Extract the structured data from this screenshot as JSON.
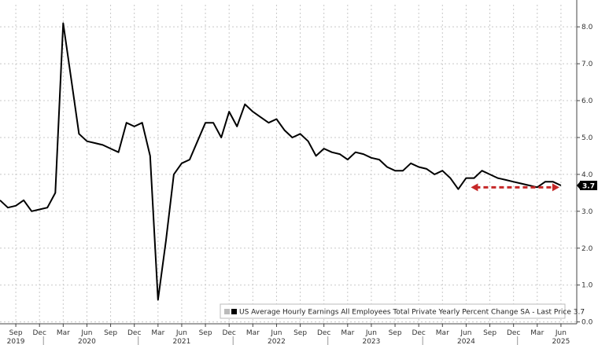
{
  "chart_data": {
    "type": "line",
    "series": [
      {
        "name": "US Average Hourly Earnings All Employees Total Private Yearly Percent Change SA - Last Price 3.7",
        "color": "#000000",
        "x": [
          "2019-07",
          "2019-08",
          "2019-09",
          "2019-10",
          "2019-11",
          "2019-12",
          "2020-01",
          "2020-02",
          "2020-03",
          "2020-04",
          "2020-05",
          "2020-06",
          "2020-07",
          "2020-08",
          "2020-09",
          "2020-10",
          "2020-11",
          "2020-12",
          "2021-01",
          "2021-02",
          "2021-03",
          "2021-04",
          "2021-05",
          "2021-06",
          "2021-07",
          "2021-08",
          "2021-09",
          "2021-10",
          "2021-11",
          "2021-12",
          "2022-01",
          "2022-02",
          "2022-03",
          "2022-04",
          "2022-05",
          "2022-06",
          "2022-07",
          "2022-08",
          "2022-09",
          "2022-10",
          "2022-11",
          "2022-12",
          "2023-01",
          "2023-02",
          "2023-03",
          "2023-04",
          "2023-05",
          "2023-06",
          "2023-07",
          "2023-08",
          "2023-09",
          "2023-10",
          "2023-11",
          "2023-12",
          "2024-01",
          "2024-02",
          "2024-03",
          "2024-04",
          "2024-05",
          "2024-06",
          "2024-07",
          "2024-08",
          "2024-09",
          "2024-10",
          "2024-11",
          "2024-12",
          "2025-01",
          "2025-02",
          "2025-03",
          "2025-04",
          "2025-05",
          "2025-06"
        ],
        "y": [
          3.3,
          3.1,
          3.15,
          3.3,
          3.0,
          3.05,
          3.1,
          3.5,
          8.1,
          6.6,
          5.1,
          4.9,
          4.85,
          4.8,
          4.7,
          4.6,
          5.4,
          5.3,
          5.4,
          4.5,
          0.6,
          2.2,
          4.0,
          4.3,
          4.4,
          4.9,
          5.4,
          5.4,
          5.0,
          5.7,
          5.3,
          5.9,
          5.7,
          5.55,
          5.4,
          5.5,
          5.2,
          5.0,
          5.1,
          4.9,
          4.5,
          4.7,
          4.6,
          4.55,
          4.4,
          4.6,
          4.55,
          4.45,
          4.4,
          4.2,
          4.1,
          4.1,
          4.3,
          4.2,
          4.15,
          4.0,
          4.1,
          3.9,
          3.6,
          3.9,
          3.9,
          4.1,
          4.0,
          3.9,
          3.85,
          3.8,
          3.75,
          3.7,
          3.65,
          3.8,
          3.8,
          3.7
        ]
      }
    ],
    "x_tick_labels": [
      {
        "x": "2019-09",
        "label": "Sep"
      },
      {
        "x": "2019-12",
        "label": "Dec"
      },
      {
        "x": "2020-03",
        "label": "Mar"
      },
      {
        "x": "2020-06",
        "label": "Jun"
      },
      {
        "x": "2020-09",
        "label": "Sep"
      },
      {
        "x": "2020-12",
        "label": "Dec"
      },
      {
        "x": "2021-03",
        "label": "Mar"
      },
      {
        "x": "2021-06",
        "label": "Jun"
      },
      {
        "x": "2021-09",
        "label": "Sep"
      },
      {
        "x": "2021-12",
        "label": "Dec"
      },
      {
        "x": "2022-03",
        "label": "Mar"
      },
      {
        "x": "2022-06",
        "label": "Jun"
      },
      {
        "x": "2022-09",
        "label": "Sep"
      },
      {
        "x": "2022-12",
        "label": "Dec"
      },
      {
        "x": "2023-03",
        "label": "Mar"
      },
      {
        "x": "2023-06",
        "label": "Jun"
      },
      {
        "x": "2023-09",
        "label": "Sep"
      },
      {
        "x": "2023-12",
        "label": "Dec"
      },
      {
        "x": "2024-03",
        "label": "Mar"
      },
      {
        "x": "2024-06",
        "label": "Jun"
      },
      {
        "x": "2024-09",
        "label": "Sep"
      },
      {
        "x": "2024-12",
        "label": "Dec"
      },
      {
        "x": "2025-03",
        "label": "Mar"
      },
      {
        "x": "2025-06",
        "label": "Jun"
      }
    ],
    "year_labels": [
      {
        "x": "2019-09",
        "label": "2019"
      },
      {
        "x": "2020-06",
        "label": "2020"
      },
      {
        "x": "2021-06",
        "label": "2021"
      },
      {
        "x": "2022-06",
        "label": "2022"
      },
      {
        "x": "2023-06",
        "label": "2023"
      },
      {
        "x": "2024-06",
        "label": "2024"
      },
      {
        "x": "2025-06",
        "label": "2025"
      }
    ],
    "y_ticks": [
      0.0,
      1.0,
      2.0,
      3.0,
      4.0,
      5.0,
      6.0,
      7.0,
      8.0
    ],
    "y_tick_labels": [
      "0.0",
      "1.0",
      "2.0",
      "3.0",
      "4.0",
      "5.0",
      "6.0",
      "7.0",
      "8.0"
    ],
    "ylim": [
      -0.05,
      8.6
    ],
    "xlim": [
      "2019-07",
      "2025-08"
    ],
    "grid": true,
    "legend": {
      "placement": "bottom-right",
      "label": "US Average Hourly Earnings All Employees Total Private Yearly Percent Change SA - Last Price 3.7"
    },
    "last_price_label": "3.7",
    "annotation": {
      "type": "dashed-double-arrow",
      "color": "#c62828",
      "from": "2024-06",
      "to": "2025-06",
      "value": 3.65
    }
  }
}
